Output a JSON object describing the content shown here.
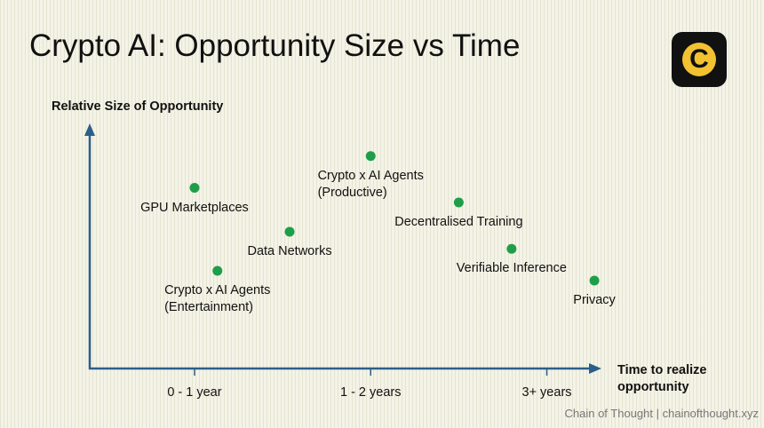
{
  "chart_data": {
    "type": "scatter",
    "title": "Crypto AI: Opportunity Size vs Time",
    "y_label": "Relative Size of Opportunity",
    "x_label": "Time to realize\nopportunity",
    "labels": [
      "GPU Marketplaces",
      "Crypto x AI Agents\n(Entertainment)",
      "Data Networks",
      "Crypto x AI Agents\n(Productive)",
      "Decentralised Training",
      "Verifiable Inference",
      "Privacy"
    ],
    "x": [
      1.0,
      1.13,
      1.54,
      2.0,
      2.5,
      2.8,
      3.27
    ],
    "y": [
      7.4,
      4.0,
      5.6,
      8.7,
      6.8,
      4.9,
      3.6
    ],
    "color": "#1f9e4a",
    "xlim": [
      0.4,
      3.3
    ],
    "ylim": [
      0,
      10
    ],
    "xticks": [
      {
        "value": 1,
        "label": "0 - 1 year"
      },
      {
        "value": 2,
        "label": "1 - 2 years"
      },
      {
        "value": 3,
        "label": "3+ years"
      }
    ]
  },
  "logo": "C",
  "footer": "Chain of Thought | chainofthought.xyz"
}
